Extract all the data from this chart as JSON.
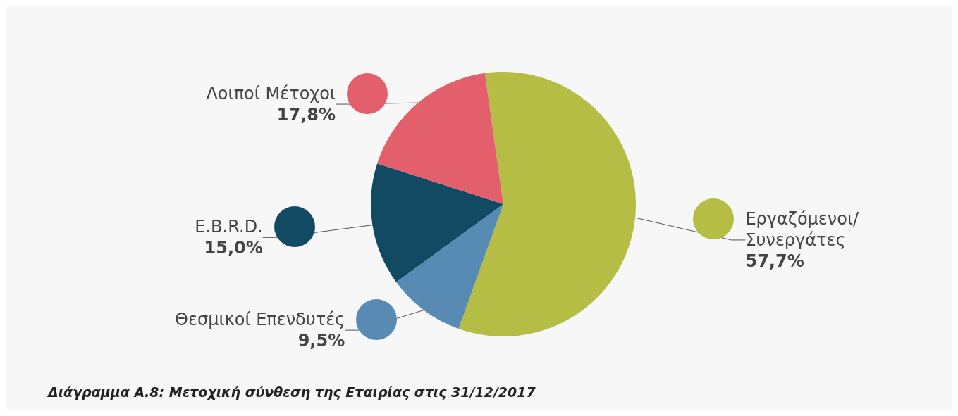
{
  "chart_data": {
    "type": "pie",
    "title": "Διάγραμμα Α.8: Μετοχική σύνθεση της Εταιρίας στις 31/12/2017",
    "categories": [
      "Εργαζόμενοι/Συνεργάτες",
      "Θεσμικοί Επενδυτές",
      "E.B.R.D.",
      "Λοιποί Μέτοχοι"
    ],
    "values": [
      57.7,
      9.5,
      15.0,
      17.8
    ],
    "value_labels": [
      "57,7%",
      "9,5%",
      "15,0%",
      "17,8%"
    ],
    "colors": [
      "#b5bd45",
      "#588bb3",
      "#124963",
      "#e35f6c"
    ]
  }
}
